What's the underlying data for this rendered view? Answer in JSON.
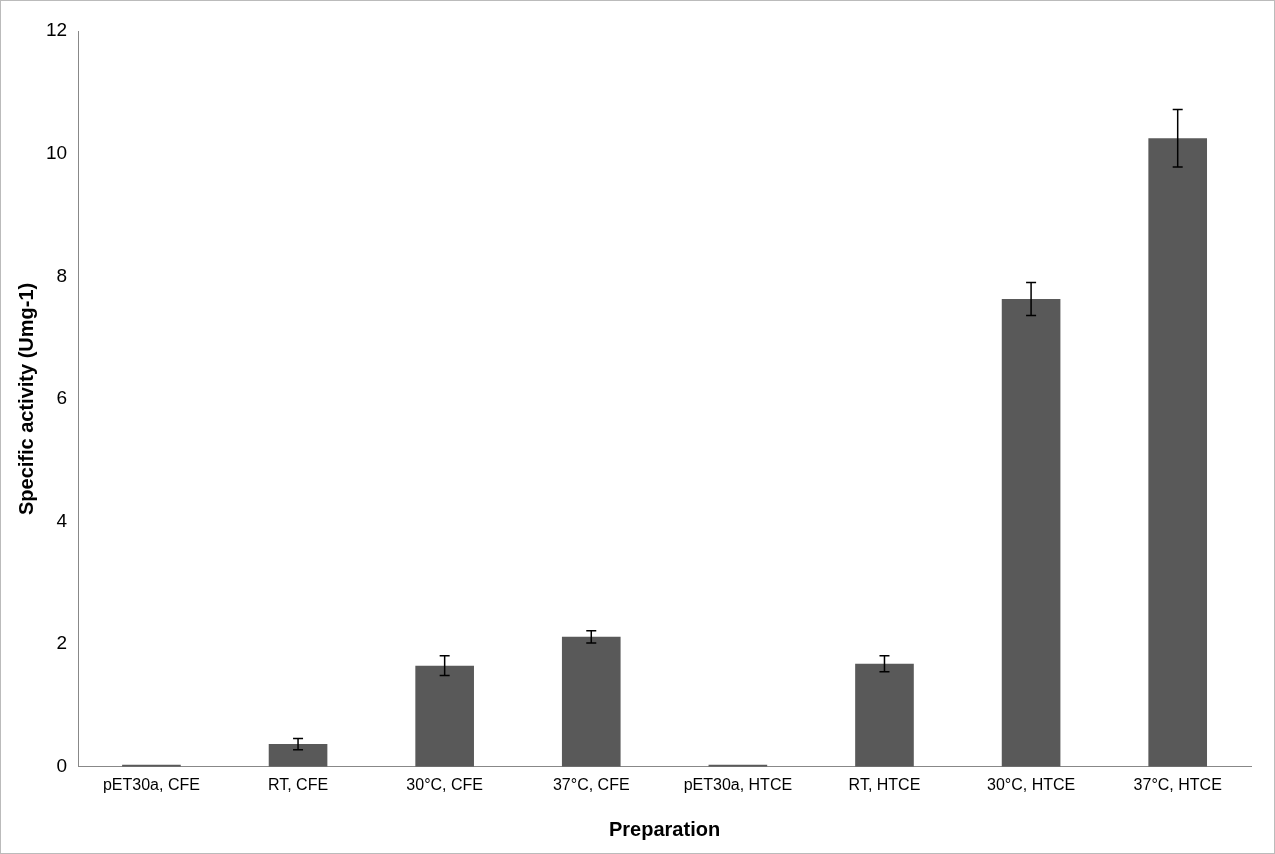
{
  "chart_data": {
    "type": "bar",
    "xlabel": "Preparation",
    "ylabel": "Specific activity (Umg-1)",
    "categories": [
      "pET30a, CFE",
      "RT, CFE",
      "30°C, CFE",
      "37°C, CFE",
      "pET30a, HTCE",
      "RT, HTCE",
      "30°C, HTCE",
      "37°C, HTCE"
    ],
    "values": [
      0,
      0.37,
      1.65,
      2.12,
      0,
      1.68,
      7.63,
      10.25
    ],
    "errors": [
      null,
      0.09,
      0.16,
      0.1,
      null,
      0.13,
      0.27,
      0.47
    ],
    "color": "#595959",
    "ylim": [
      0,
      12
    ],
    "yticks": [
      0,
      2,
      4,
      6,
      8,
      10,
      12
    ],
    "grid": false,
    "legend": false
  }
}
